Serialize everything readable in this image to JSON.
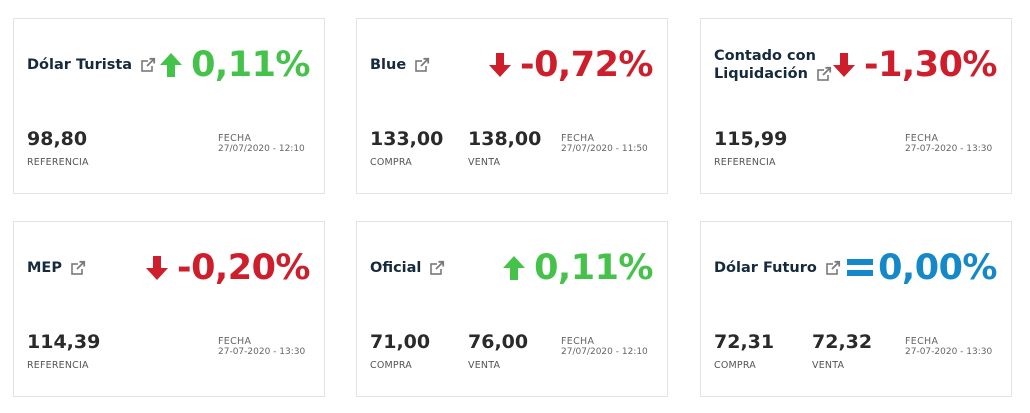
{
  "cards": [
    {
      "name_lines": [
        "Dólar Turista"
      ],
      "change": "0,11%",
      "direction": "up",
      "values": [
        {
          "num": "98,80",
          "label": "REFERENCIA"
        }
      ],
      "date_label": "FECHA",
      "date": "27/07/2020 - 12:10"
    },
    {
      "name_lines": [
        "Blue"
      ],
      "change": "-0,72%",
      "direction": "down",
      "values": [
        {
          "num": "133,00",
          "label": "COMPRA"
        },
        {
          "num": "138,00",
          "label": "VENTA"
        }
      ],
      "date_label": "FECHA",
      "date": "27/07/2020 - 11:50"
    },
    {
      "name_lines": [
        "Contado con",
        "Liquidación"
      ],
      "change": "-1,30%",
      "direction": "down",
      "values": [
        {
          "num": "115,99",
          "label": "REFERENCIA"
        }
      ],
      "date_label": "FECHA",
      "date": "27-07-2020 - 13:30"
    },
    {
      "name_lines": [
        "MEP"
      ],
      "change": "-0,20%",
      "direction": "down",
      "values": [
        {
          "num": "114,39",
          "label": "REFERENCIA"
        }
      ],
      "date_label": "FECHA",
      "date": "27-07-2020 - 13:30"
    },
    {
      "name_lines": [
        "Oficial"
      ],
      "change": "0,11%",
      "direction": "up",
      "values": [
        {
          "num": "71,00",
          "label": "COMPRA"
        },
        {
          "num": "76,00",
          "label": "VENTA"
        }
      ],
      "date_label": "FECHA",
      "date": "27/07/2020 - 12:10"
    },
    {
      "name_lines": [
        "Dólar Futuro"
      ],
      "change": "0,00%",
      "direction": "flat",
      "values": [
        {
          "num": "72,31",
          "label": "COMPRA"
        },
        {
          "num": "72,32",
          "label": "VENTA"
        }
      ],
      "date_label": "FECHA",
      "date": "27-07-2020 - 13:30"
    }
  ],
  "icons": {
    "up": "arrow-up-icon",
    "down": "arrow-down-icon",
    "flat": "equals-icon",
    "external": "external-link-icon"
  },
  "colors": {
    "up": "#44c24a",
    "down": "#cf1e2b",
    "flat": "#1488c8",
    "title": "#152a3c"
  }
}
